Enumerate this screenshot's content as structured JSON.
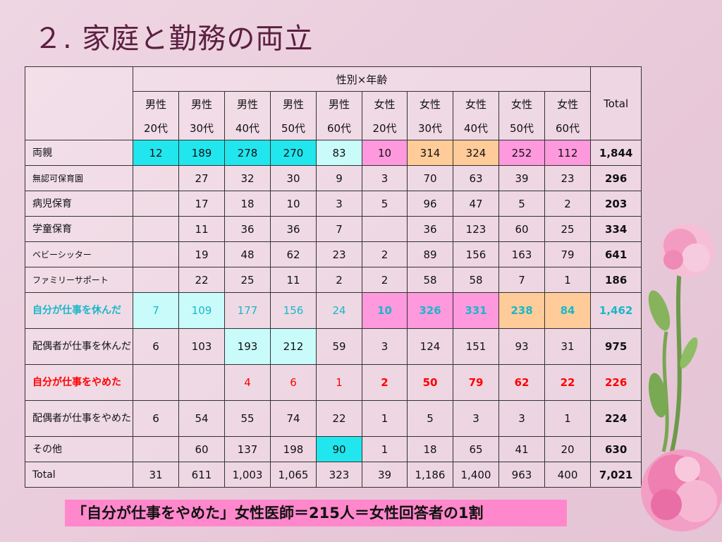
{
  "title": "２. 家庭と勤務の両立",
  "table": {
    "group_header": "性別×年齢",
    "total_header": "Total",
    "col_top": [
      "男性",
      "男性",
      "男性",
      "男性",
      "男性",
      "女性",
      "女性",
      "女性",
      "女性",
      "女性"
    ],
    "col_sub": [
      "20代",
      "30代",
      "40代",
      "50代",
      "60代",
      "20代",
      "30代",
      "40代",
      "50代",
      "60代"
    ],
    "rows": [
      {
        "label": "両親",
        "cells": [
          "12",
          "189",
          "278",
          "270",
          "83",
          "10",
          "314",
          "324",
          "252",
          "112"
        ],
        "total": "1,844"
      },
      {
        "label": "無認可保育園",
        "cells": [
          "",
          "27",
          "32",
          "30",
          "9",
          "3",
          "70",
          "63",
          "39",
          "23"
        ],
        "total": "296"
      },
      {
        "label": "病児保育",
        "cells": [
          "",
          "17",
          "18",
          "10",
          "3",
          "5",
          "96",
          "47",
          "5",
          "2"
        ],
        "total": "203"
      },
      {
        "label": "学童保育",
        "cells": [
          "",
          "11",
          "36",
          "36",
          "7",
          "",
          "36",
          "123",
          "60",
          "25"
        ],
        "total": "334"
      },
      {
        "label": "ベビーシッター",
        "cells": [
          "",
          "19",
          "48",
          "62",
          "23",
          "2",
          "89",
          "156",
          "163",
          "79"
        ],
        "total": "641"
      },
      {
        "label": "ファミリーサポート",
        "cells": [
          "",
          "22",
          "25",
          "11",
          "2",
          "2",
          "58",
          "58",
          "7",
          "1"
        ],
        "total": "186"
      },
      {
        "label": "自分が仕事を休んだ",
        "cells": [
          "7",
          "109",
          "177",
          "156",
          "24",
          "10",
          "326",
          "331",
          "238",
          "84"
        ],
        "total": "1,462"
      },
      {
        "label": "配偶者が仕事を休んだ",
        "cells": [
          "6",
          "103",
          "193",
          "212",
          "59",
          "3",
          "124",
          "151",
          "93",
          "31"
        ],
        "total": "975"
      },
      {
        "label": "自分が仕事をやめた",
        "cells": [
          "",
          "",
          "4",
          "6",
          "1",
          "2",
          "50",
          "79",
          "62",
          "22"
        ],
        "total": "226"
      },
      {
        "label": "配偶者が仕事をやめた",
        "cells": [
          "6",
          "54",
          "55",
          "74",
          "22",
          "1",
          "5",
          "3",
          "3",
          "1"
        ],
        "total": "224"
      },
      {
        "label": "その他",
        "cells": [
          "",
          "60",
          "137",
          "198",
          "90",
          "1",
          "18",
          "65",
          "41",
          "20"
        ],
        "total": "630"
      },
      {
        "label": "Total",
        "cells": [
          "31",
          "611",
          "1,003",
          "1,065",
          "323",
          "39",
          "1,186",
          "1,400",
          "963",
          "400"
        ],
        "total": "7,021"
      }
    ]
  },
  "highlight_colors": {
    "cyan": "#21e6ee",
    "light_cyan": "#c9fbfb",
    "pink": "#ff99dd",
    "orange": "#ffcc99",
    "blue_text": "#19b7c8",
    "red_text": "#ff0000"
  },
  "footnote": "「自分が仕事をやめた」女性医師＝215人＝女性回答者の1割",
  "decoration": "carnation-flowers"
}
